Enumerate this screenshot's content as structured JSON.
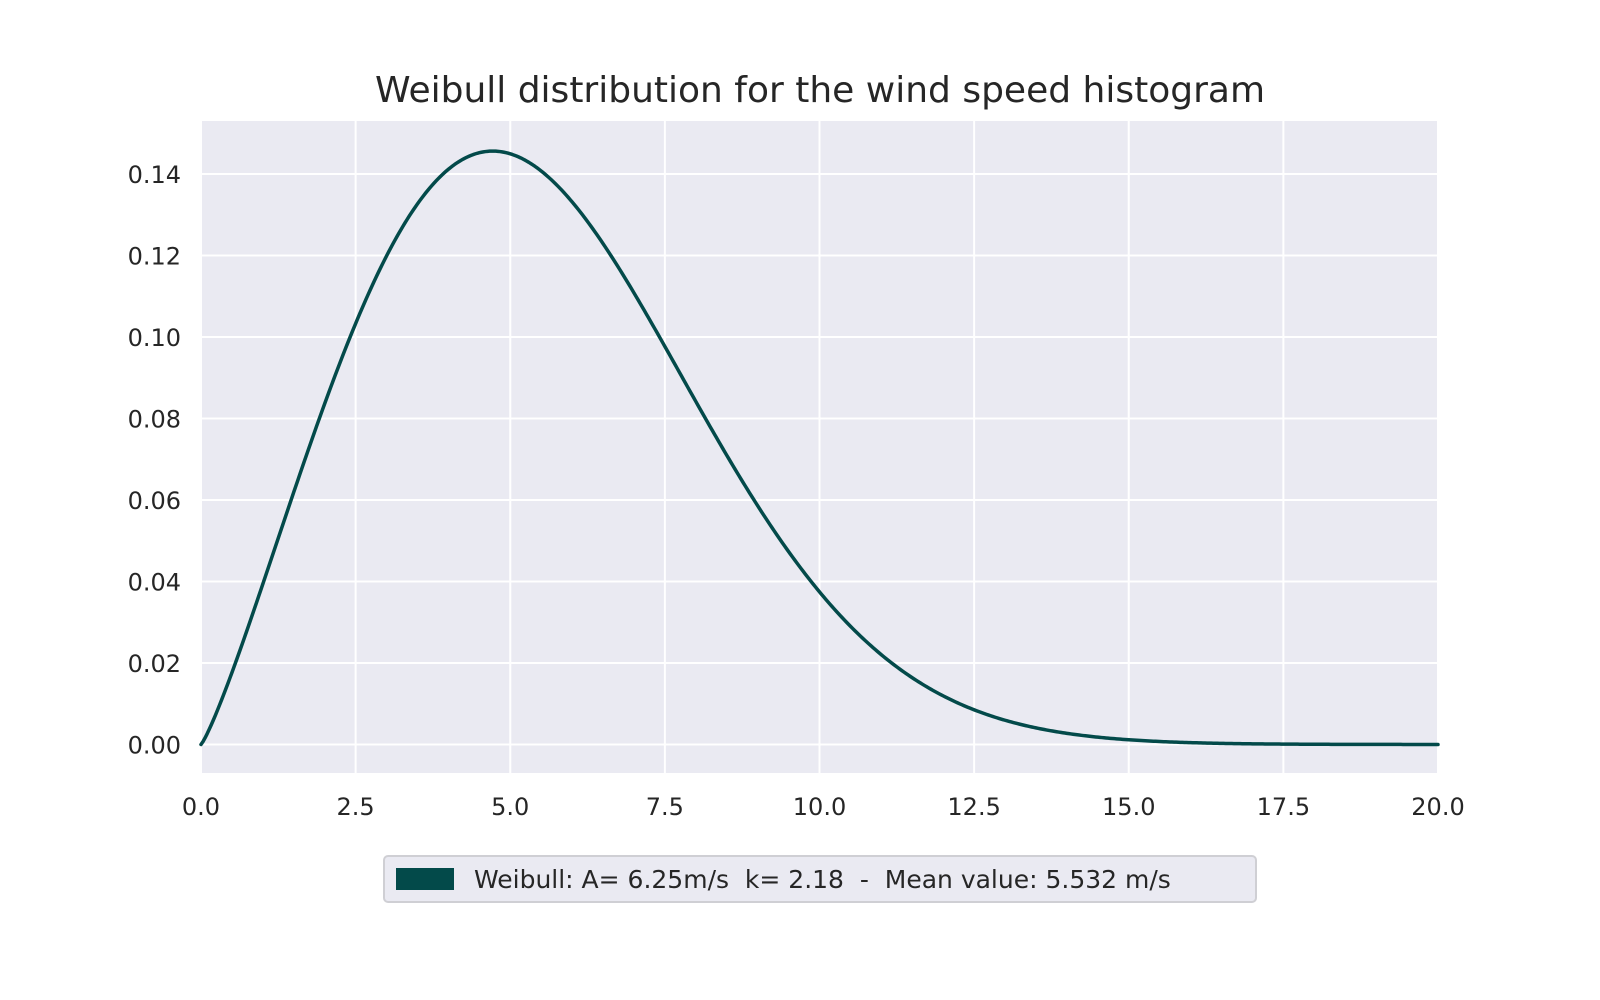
{
  "chart_data": {
    "type": "line",
    "title": "Weibull distribution for the wind speed histogram",
    "xlabel": "",
    "ylabel": "",
    "xlim": [
      0,
      20
    ],
    "ylim": [
      -0.007,
      0.153
    ],
    "x_ticks": [
      "0.0",
      "2.5",
      "5.0",
      "7.5",
      "10.0",
      "12.5",
      "15.0",
      "17.5",
      "20.0"
    ],
    "y_ticks": [
      "0.00",
      "0.02",
      "0.04",
      "0.06",
      "0.08",
      "0.10",
      "0.12",
      "0.14"
    ],
    "grid": true,
    "background": "#eaeaf2",
    "legend_placement": "bottom-center",
    "series": [
      {
        "name": "Weibull: A= 6.25m/s  k= 2.18  -  Mean value: 5.532 m/s",
        "distribution": "weibull_pdf",
        "A": 6.25,
        "k": 2.18,
        "x_range": [
          0,
          20
        ],
        "color": "#034a4a"
      }
    ]
  }
}
